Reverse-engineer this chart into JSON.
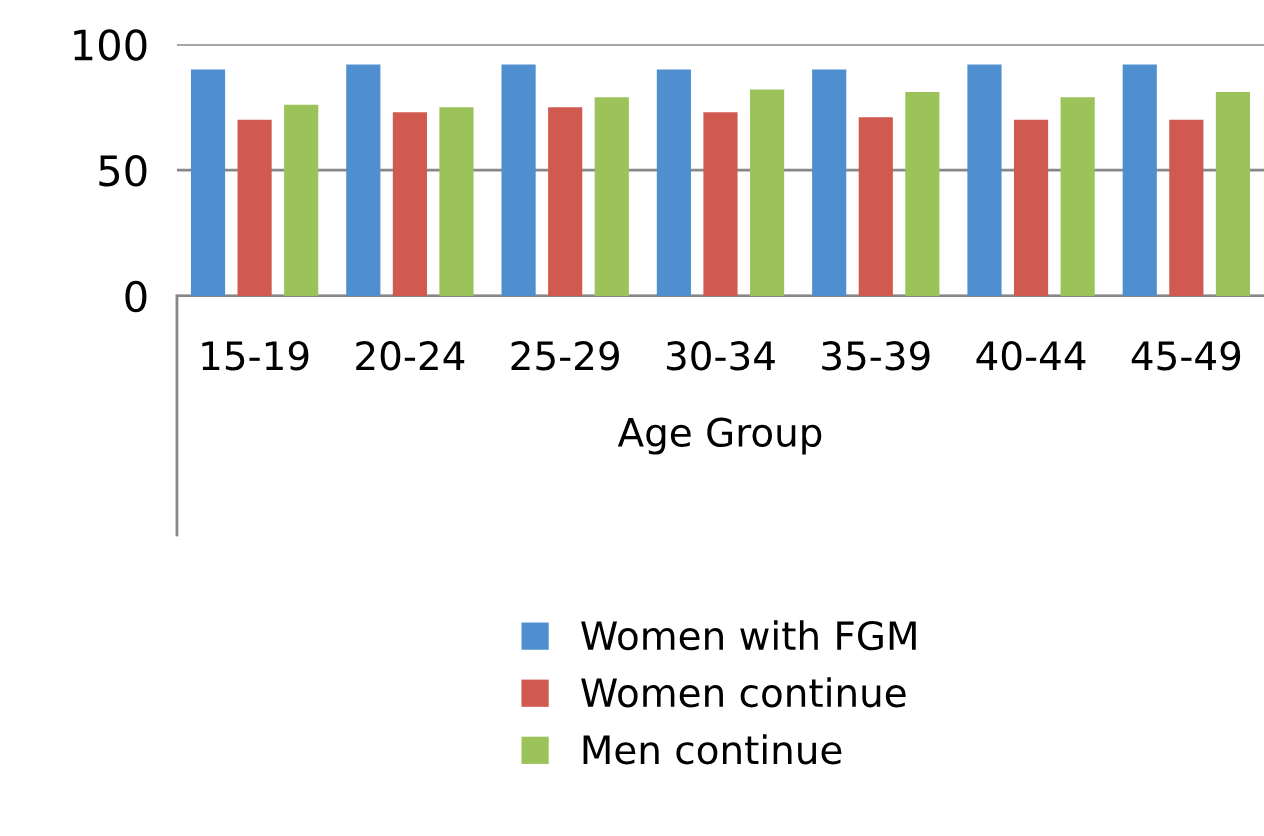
{
  "chart_data": {
    "type": "bar",
    "xlabel": "Age Group",
    "categories": [
      "15-19",
      "20-24",
      "25-29",
      "30-34",
      "35-39",
      "40-44",
      "45-49"
    ],
    "series": [
      {
        "name": "Women with FGM",
        "color": "#4f8fcf",
        "values": [
          90,
          92,
          92,
          90,
          90,
          92,
          92
        ]
      },
      {
        "name": "Women continue",
        "color": "#d05a50",
        "values": [
          70,
          73,
          75,
          73,
          71,
          70,
          70
        ]
      },
      {
        "name": "Men continue",
        "color": "#9bc35a",
        "values": [
          76,
          75,
          79,
          82,
          81,
          79,
          81
        ]
      }
    ],
    "ylim": [
      0,
      100
    ],
    "yticks": [
      0,
      50,
      100
    ],
    "grid": "y",
    "legend": "bottom"
  }
}
